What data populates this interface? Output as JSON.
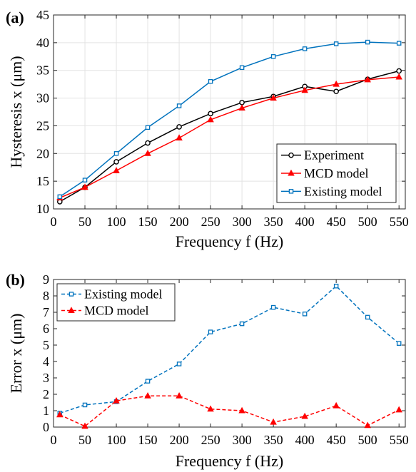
{
  "chart_data": [
    {
      "panel_label": "(a)",
      "type": "line",
      "ylabel": "Hysteresis x (μm)",
      "xlabel": "Frequency f (Hz)",
      "xlim": [
        0,
        560
      ],
      "ylim": [
        10,
        45
      ],
      "xticks": [
        0,
        50,
        100,
        150,
        200,
        250,
        300,
        350,
        400,
        450,
        500,
        550
      ],
      "yticks": [
        10,
        15,
        20,
        25,
        30,
        35,
        40,
        45
      ],
      "grid": true,
      "legend_position": "bottom-right",
      "x": [
        10,
        50,
        100,
        150,
        200,
        250,
        300,
        350,
        400,
        450,
        500,
        550
      ],
      "series": [
        {
          "name": "Experiment",
          "color": "#000000",
          "marker": "circle",
          "dash": false,
          "values": [
            11.3,
            13.9,
            18.5,
            21.9,
            24.8,
            27.2,
            29.2,
            30.3,
            32.1,
            31.2,
            33.4,
            34.9
          ]
        },
        {
          "name": "MCD model",
          "color": "#ff0000",
          "marker": "triangle",
          "dash": false,
          "values": [
            12.0,
            13.9,
            16.9,
            20.0,
            22.8,
            26.1,
            28.2,
            30.0,
            31.4,
            32.5,
            33.3,
            33.8
          ]
        },
        {
          "name": "Existing model",
          "color": "#0072bd",
          "marker": "square",
          "dash": false,
          "values": [
            12.2,
            15.2,
            20.0,
            24.7,
            28.6,
            33.0,
            35.5,
            37.5,
            38.9,
            39.8,
            40.1,
            39.9
          ]
        }
      ]
    },
    {
      "panel_label": "(b)",
      "type": "line",
      "ylabel": "Error x (μm)",
      "xlabel": "Frequency f (Hz)",
      "xlim": [
        0,
        560
      ],
      "ylim": [
        0,
        9
      ],
      "xticks": [
        0,
        50,
        100,
        150,
        200,
        250,
        300,
        350,
        400,
        450,
        500,
        550
      ],
      "yticks": [
        0,
        1,
        2,
        3,
        4,
        5,
        6,
        7,
        8,
        9
      ],
      "grid": false,
      "legend_position": "top-left",
      "x": [
        10,
        50,
        100,
        150,
        200,
        250,
        300,
        350,
        400,
        450,
        500,
        550
      ],
      "series": [
        {
          "name": "Existing model",
          "color": "#0072bd",
          "marker": "square",
          "dash": true,
          "values": [
            0.85,
            1.35,
            1.55,
            2.8,
            3.85,
            5.8,
            6.3,
            7.3,
            6.9,
            8.6,
            6.7,
            5.1
          ]
        },
        {
          "name": "MCD model",
          "color": "#ff0000",
          "marker": "triangle",
          "dash": true,
          "values": [
            0.75,
            0.05,
            1.6,
            1.9,
            1.9,
            1.1,
            1.0,
            0.3,
            0.65,
            1.3,
            0.1,
            1.05
          ]
        }
      ]
    }
  ]
}
